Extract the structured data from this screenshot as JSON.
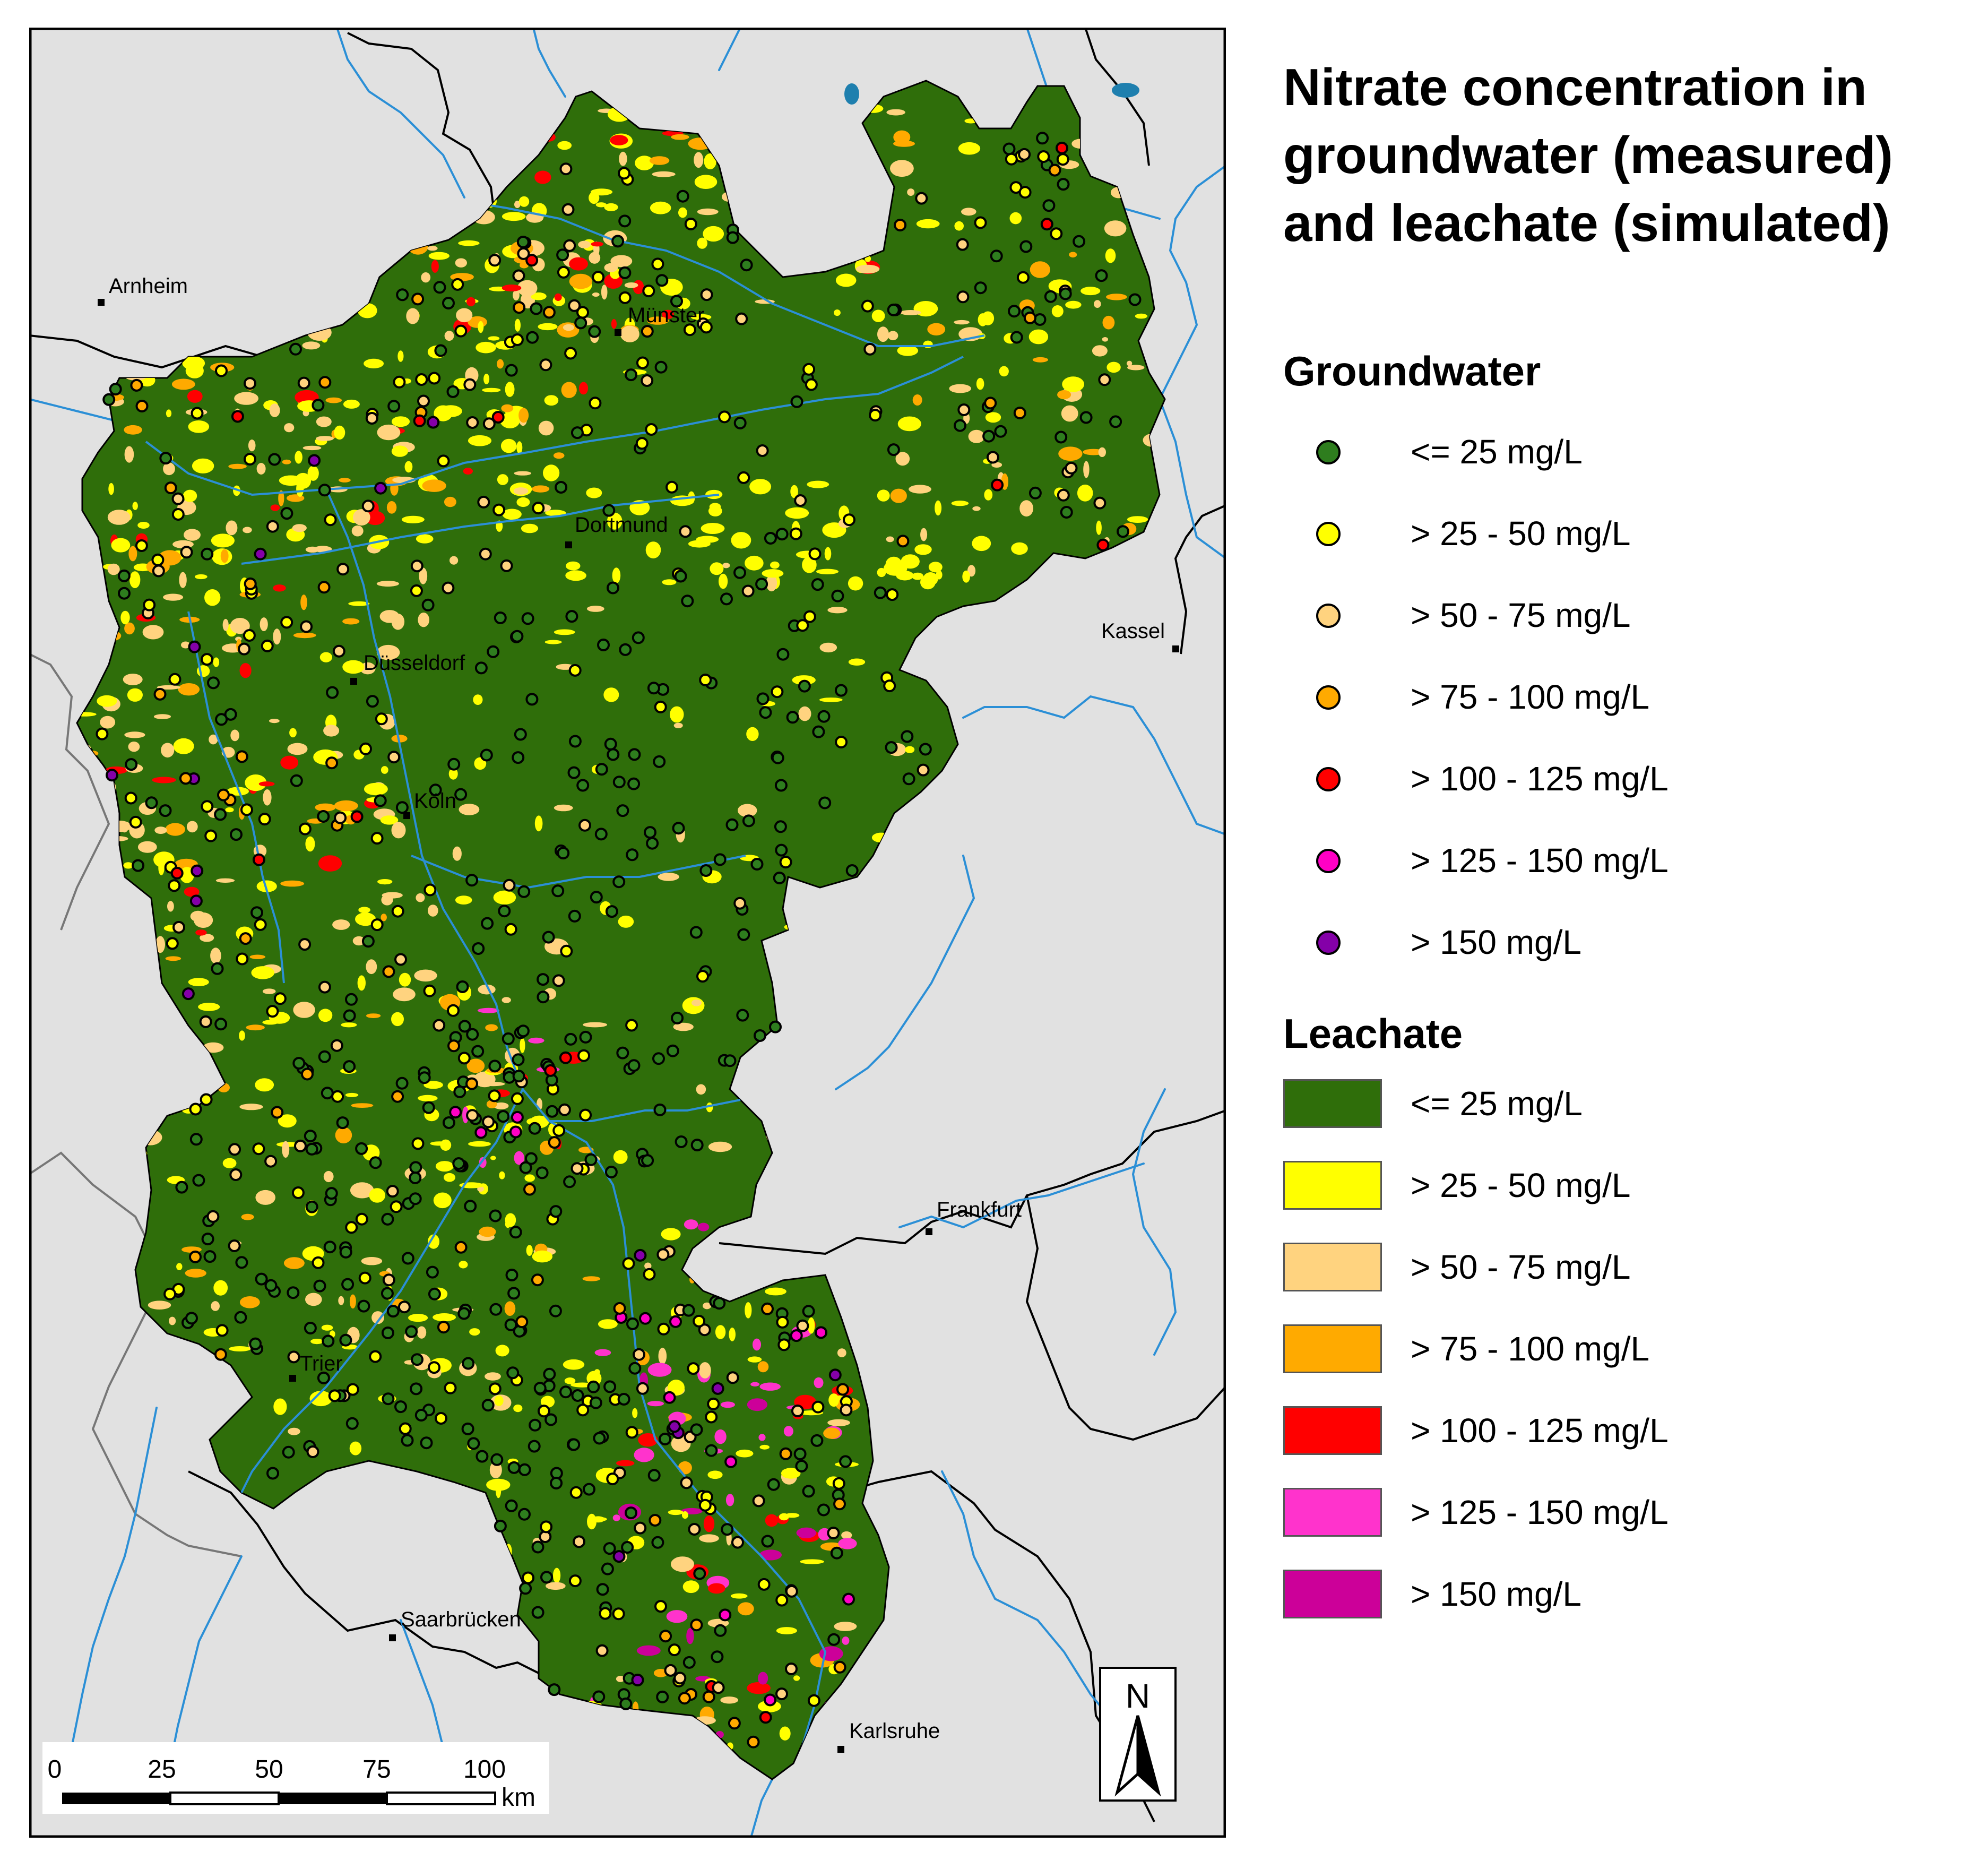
{
  "title": "Nitrate concentration in groundwater (measured) and leachate (simulated)",
  "title_lines": [
    "Nitrate concentration in",
    "groundwater (measured)",
    "and leachate (simulated)"
  ],
  "legend": {
    "groundwater_title": "Groundwater",
    "leachate_title": "Leachate",
    "groundwater": [
      {
        "label": "<= 25 mg/L",
        "color": "#2e7d1e"
      },
      {
        "label": "> 25 - 50 mg/L",
        "color": "#ffff00"
      },
      {
        "label": "> 50 - 75 mg/L",
        "color": "#ffd37f"
      },
      {
        "label": "> 75 - 100 mg/L",
        "color": "#ffaa00"
      },
      {
        "label": "> 100 - 125 mg/L",
        "color": "#ff0000"
      },
      {
        "label": "> 125 - 150 mg/L",
        "color": "#ff00c5"
      },
      {
        "label": "> 150 mg/L",
        "color": "#8400a8"
      }
    ],
    "leachate": [
      {
        "label": "<= 25 mg/L",
        "color": "#2f6e0a"
      },
      {
        "label": "> 25 - 50 mg/L",
        "color": "#ffff00"
      },
      {
        "label": "> 50 - 75 mg/L",
        "color": "#ffd37f"
      },
      {
        "label": "> 75 - 100 mg/L",
        "color": "#ffaa00"
      },
      {
        "label": "> 100 - 125 mg/L",
        "color": "#ff0000"
      },
      {
        "label": "> 125 - 150 mg/L",
        "color": "#ff33cc"
      },
      {
        "label": "> 150 mg/L",
        "color": "#cc0099"
      }
    ]
  },
  "cities": [
    "Arnheim",
    "Münster",
    "Dortmund",
    "Düsseldorf",
    "Köln",
    "Kassel",
    "Frankfurt",
    "Trier",
    "Saarbrücken",
    "Karlsruhe"
  ],
  "scalebar": {
    "ticks": [
      "0",
      "25",
      "50",
      "75",
      "100"
    ],
    "unit": "km"
  },
  "north_arrow": "N",
  "colors": {
    "background": "#e1e1e1",
    "river": "#2b8fd6",
    "lake": "#1e7fae",
    "border": "#000000"
  }
}
